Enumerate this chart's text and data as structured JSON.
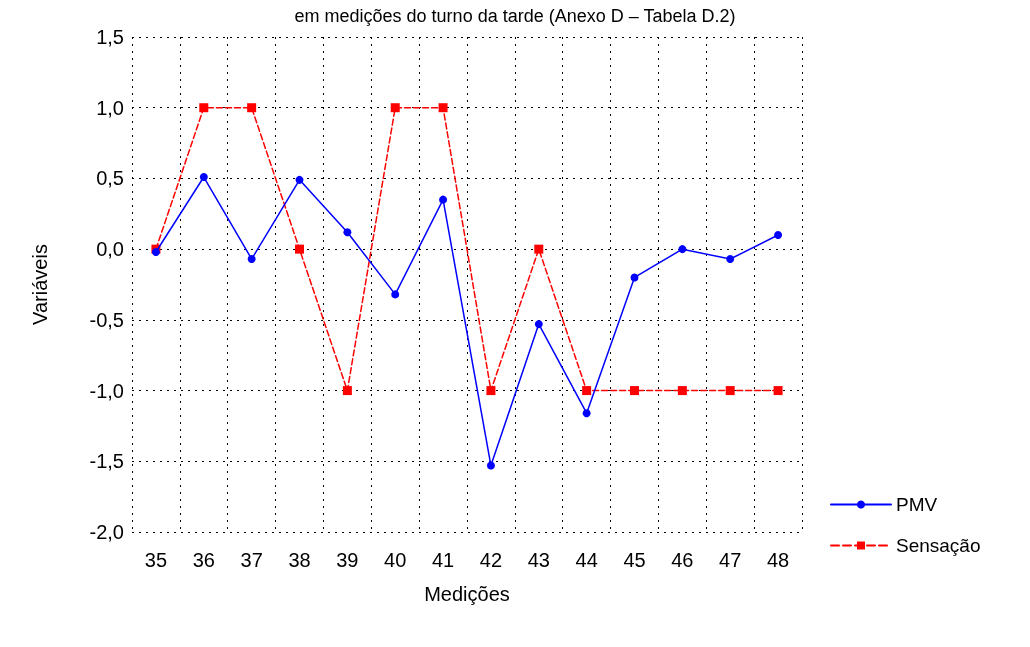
{
  "chart_data": {
    "type": "line",
    "title": "em medições do turno da tarde (Anexo D – Tabela D.2)",
    "xlabel": "Medições",
    "ylabel": "Variáveis",
    "categories": [
      "35",
      "36",
      "37",
      "38",
      "39",
      "40",
      "41",
      "42",
      "43",
      "44",
      "45",
      "46",
      "47",
      "48"
    ],
    "series": [
      {
        "name": "PMV",
        "color": "#0000ff",
        "marker": "circle",
        "line_style": "solid",
        "values": [
          -0.02,
          0.51,
          -0.07,
          0.49,
          0.12,
          -0.32,
          0.35,
          -1.53,
          -0.53,
          -1.16,
          -0.2,
          0,
          -0.07,
          0.1
        ]
      },
      {
        "name": "Sensação",
        "color": "#ff0000",
        "marker": "square",
        "line_style": "dashed",
        "values": [
          0,
          1,
          1,
          0,
          -1,
          1,
          1,
          -1,
          0,
          -1,
          -1,
          -1,
          -1,
          -1
        ]
      }
    ],
    "ylim": [
      -2,
      1.5
    ],
    "yticks": [
      {
        "value": -2,
        "label": "-2,0"
      },
      {
        "value": -1.5,
        "label": "-1,5"
      },
      {
        "value": -1,
        "label": "-1,0"
      },
      {
        "value": -0.5,
        "label": "-0,5"
      },
      {
        "value": 0,
        "label": "0,0"
      },
      {
        "value": 0.5,
        "label": "0,5"
      },
      {
        "value": 1,
        "label": "1,0"
      },
      {
        "value": 1.5,
        "label": "1,5"
      }
    ],
    "grid": true,
    "legend": "bottom right"
  }
}
